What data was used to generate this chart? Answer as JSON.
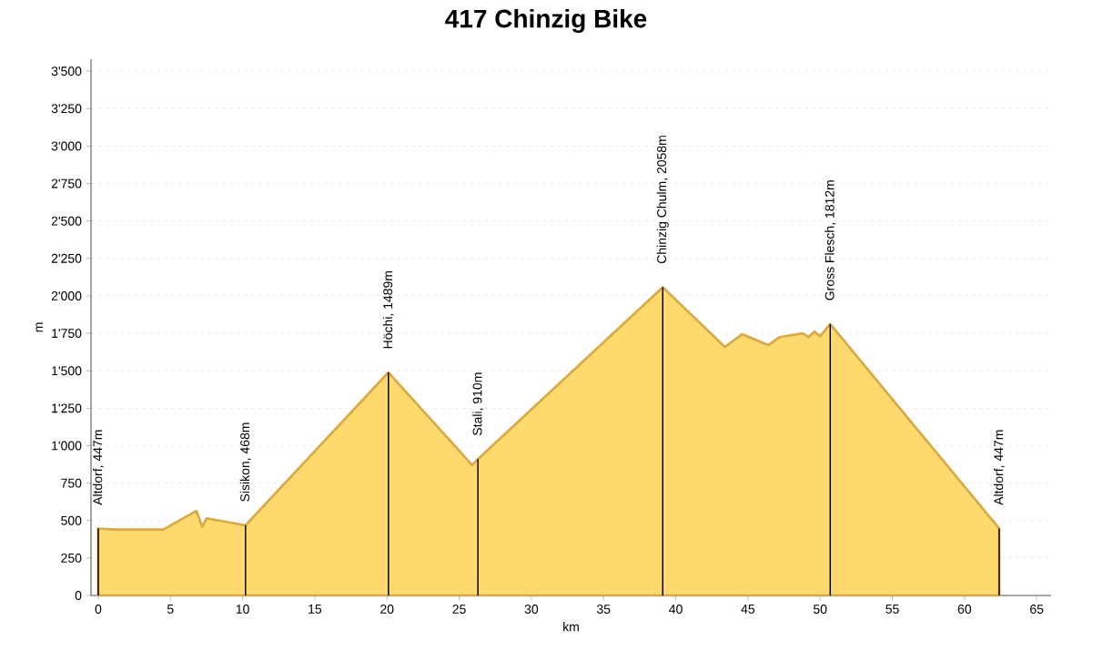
{
  "chart_data": {
    "type": "area",
    "title": "417 Chinzig Bike",
    "xlabel": "km",
    "ylabel": "m",
    "x": [
      0,
      1.2,
      3,
      4.5,
      6.8,
      7.2,
      7.5,
      10.2,
      20.1,
      25.9,
      26.3,
      39.1,
      43.4,
      44.6,
      46.4,
      47.2,
      48.8,
      49.2,
      49.6,
      50.0,
      50.7,
      62.4
    ],
    "series": [
      {
        "color": "#fdd96e",
        "values": [
          447,
          440,
          440,
          440,
          565,
          460,
          515,
          468,
          1489,
          870,
          910,
          2058,
          1659,
          1744,
          1671,
          1725,
          1750,
          1725,
          1762,
          1731,
          1812,
          447
        ]
      },
      {
        "type": "bar",
        "color": "#000000",
        "x": [
          0,
          10.2,
          20.1,
          26.3,
          39.1,
          50.7,
          62.4
        ],
        "values": [
          447,
          468,
          1489,
          910,
          2058,
          1812,
          447
        ],
        "value_labels": [
          "Altdorf, 447m",
          "Sisikon, 468m",
          "Höchi, 1489m",
          "Stali, 910m",
          "Chinzig Chulm, 2058m",
          "Gross Flesch, 1812m",
          "Altdorf, 447m"
        ]
      }
    ],
    "xlim": [
      -0.5,
      66
    ],
    "ylim": [
      0,
      3580
    ],
    "xticks": [
      0,
      5,
      10,
      15,
      20,
      25,
      30,
      35,
      40,
      45,
      50,
      55,
      60,
      65
    ],
    "yticks": [
      0,
      250,
      500,
      750,
      {
        "value": 1000,
        "label": "1'000"
      },
      {
        "value": 1250,
        "label": "1'250"
      },
      {
        "value": 1500,
        "label": "1'500"
      },
      {
        "value": 1750,
        "label": "1'750"
      },
      {
        "value": 2000,
        "label": "2'000"
      },
      {
        "value": 2250,
        "label": "2'250"
      },
      {
        "value": 2500,
        "label": "2'500"
      },
      {
        "value": 2750,
        "label": "2'750"
      },
      {
        "value": 3000,
        "label": "3'000"
      },
      {
        "value": 3250,
        "label": "3'250"
      },
      {
        "value": 3500,
        "label": "3'500"
      }
    ],
    "grid": "y"
  }
}
